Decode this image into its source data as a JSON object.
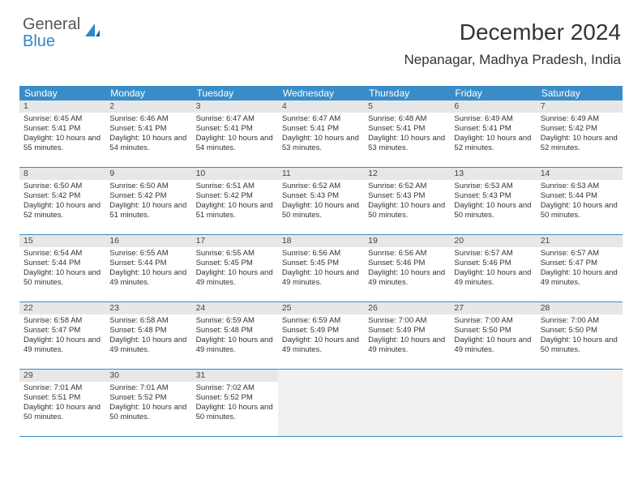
{
  "logo": {
    "general": "General",
    "blue": "Blue"
  },
  "title": "December 2024",
  "location": "Nepanagar, Madhya Pradesh, India",
  "colors": {
    "header_bg": "#3a8cc9",
    "header_text": "#ffffff",
    "daynum_bg": "#e7e7e7",
    "row_border": "#3a8cc9",
    "logo_blue": "#2f88c9",
    "logo_gray": "#555555",
    "body_text": "#333333"
  },
  "weekdays": [
    "Sunday",
    "Monday",
    "Tuesday",
    "Wednesday",
    "Thursday",
    "Friday",
    "Saturday"
  ],
  "weeks": [
    [
      {
        "n": "1",
        "sr": "6:45 AM",
        "ss": "5:41 PM",
        "dl": "10 hours and 55 minutes."
      },
      {
        "n": "2",
        "sr": "6:46 AM",
        "ss": "5:41 PM",
        "dl": "10 hours and 54 minutes."
      },
      {
        "n": "3",
        "sr": "6:47 AM",
        "ss": "5:41 PM",
        "dl": "10 hours and 54 minutes."
      },
      {
        "n": "4",
        "sr": "6:47 AM",
        "ss": "5:41 PM",
        "dl": "10 hours and 53 minutes."
      },
      {
        "n": "5",
        "sr": "6:48 AM",
        "ss": "5:41 PM",
        "dl": "10 hours and 53 minutes."
      },
      {
        "n": "6",
        "sr": "6:49 AM",
        "ss": "5:41 PM",
        "dl": "10 hours and 52 minutes."
      },
      {
        "n": "7",
        "sr": "6:49 AM",
        "ss": "5:42 PM",
        "dl": "10 hours and 52 minutes."
      }
    ],
    [
      {
        "n": "8",
        "sr": "6:50 AM",
        "ss": "5:42 PM",
        "dl": "10 hours and 52 minutes."
      },
      {
        "n": "9",
        "sr": "6:50 AM",
        "ss": "5:42 PM",
        "dl": "10 hours and 51 minutes."
      },
      {
        "n": "10",
        "sr": "6:51 AM",
        "ss": "5:42 PM",
        "dl": "10 hours and 51 minutes."
      },
      {
        "n": "11",
        "sr": "6:52 AM",
        "ss": "5:43 PM",
        "dl": "10 hours and 50 minutes."
      },
      {
        "n": "12",
        "sr": "6:52 AM",
        "ss": "5:43 PM",
        "dl": "10 hours and 50 minutes."
      },
      {
        "n": "13",
        "sr": "6:53 AM",
        "ss": "5:43 PM",
        "dl": "10 hours and 50 minutes."
      },
      {
        "n": "14",
        "sr": "6:53 AM",
        "ss": "5:44 PM",
        "dl": "10 hours and 50 minutes."
      }
    ],
    [
      {
        "n": "15",
        "sr": "6:54 AM",
        "ss": "5:44 PM",
        "dl": "10 hours and 50 minutes."
      },
      {
        "n": "16",
        "sr": "6:55 AM",
        "ss": "5:44 PM",
        "dl": "10 hours and 49 minutes."
      },
      {
        "n": "17",
        "sr": "6:55 AM",
        "ss": "5:45 PM",
        "dl": "10 hours and 49 minutes."
      },
      {
        "n": "18",
        "sr": "6:56 AM",
        "ss": "5:45 PM",
        "dl": "10 hours and 49 minutes."
      },
      {
        "n": "19",
        "sr": "6:56 AM",
        "ss": "5:46 PM",
        "dl": "10 hours and 49 minutes."
      },
      {
        "n": "20",
        "sr": "6:57 AM",
        "ss": "5:46 PM",
        "dl": "10 hours and 49 minutes."
      },
      {
        "n": "21",
        "sr": "6:57 AM",
        "ss": "5:47 PM",
        "dl": "10 hours and 49 minutes."
      }
    ],
    [
      {
        "n": "22",
        "sr": "6:58 AM",
        "ss": "5:47 PM",
        "dl": "10 hours and 49 minutes."
      },
      {
        "n": "23",
        "sr": "6:58 AM",
        "ss": "5:48 PM",
        "dl": "10 hours and 49 minutes."
      },
      {
        "n": "24",
        "sr": "6:59 AM",
        "ss": "5:48 PM",
        "dl": "10 hours and 49 minutes."
      },
      {
        "n": "25",
        "sr": "6:59 AM",
        "ss": "5:49 PM",
        "dl": "10 hours and 49 minutes."
      },
      {
        "n": "26",
        "sr": "7:00 AM",
        "ss": "5:49 PM",
        "dl": "10 hours and 49 minutes."
      },
      {
        "n": "27",
        "sr": "7:00 AM",
        "ss": "5:50 PM",
        "dl": "10 hours and 49 minutes."
      },
      {
        "n": "28",
        "sr": "7:00 AM",
        "ss": "5:50 PM",
        "dl": "10 hours and 50 minutes."
      }
    ],
    [
      {
        "n": "29",
        "sr": "7:01 AM",
        "ss": "5:51 PM",
        "dl": "10 hours and 50 minutes."
      },
      {
        "n": "30",
        "sr": "7:01 AM",
        "ss": "5:52 PM",
        "dl": "10 hours and 50 minutes."
      },
      {
        "n": "31",
        "sr": "7:02 AM",
        "ss": "5:52 PM",
        "dl": "10 hours and 50 minutes."
      },
      null,
      null,
      null,
      null
    ]
  ],
  "labels": {
    "sunrise": "Sunrise:",
    "sunset": "Sunset:",
    "daylight": "Daylight:"
  }
}
